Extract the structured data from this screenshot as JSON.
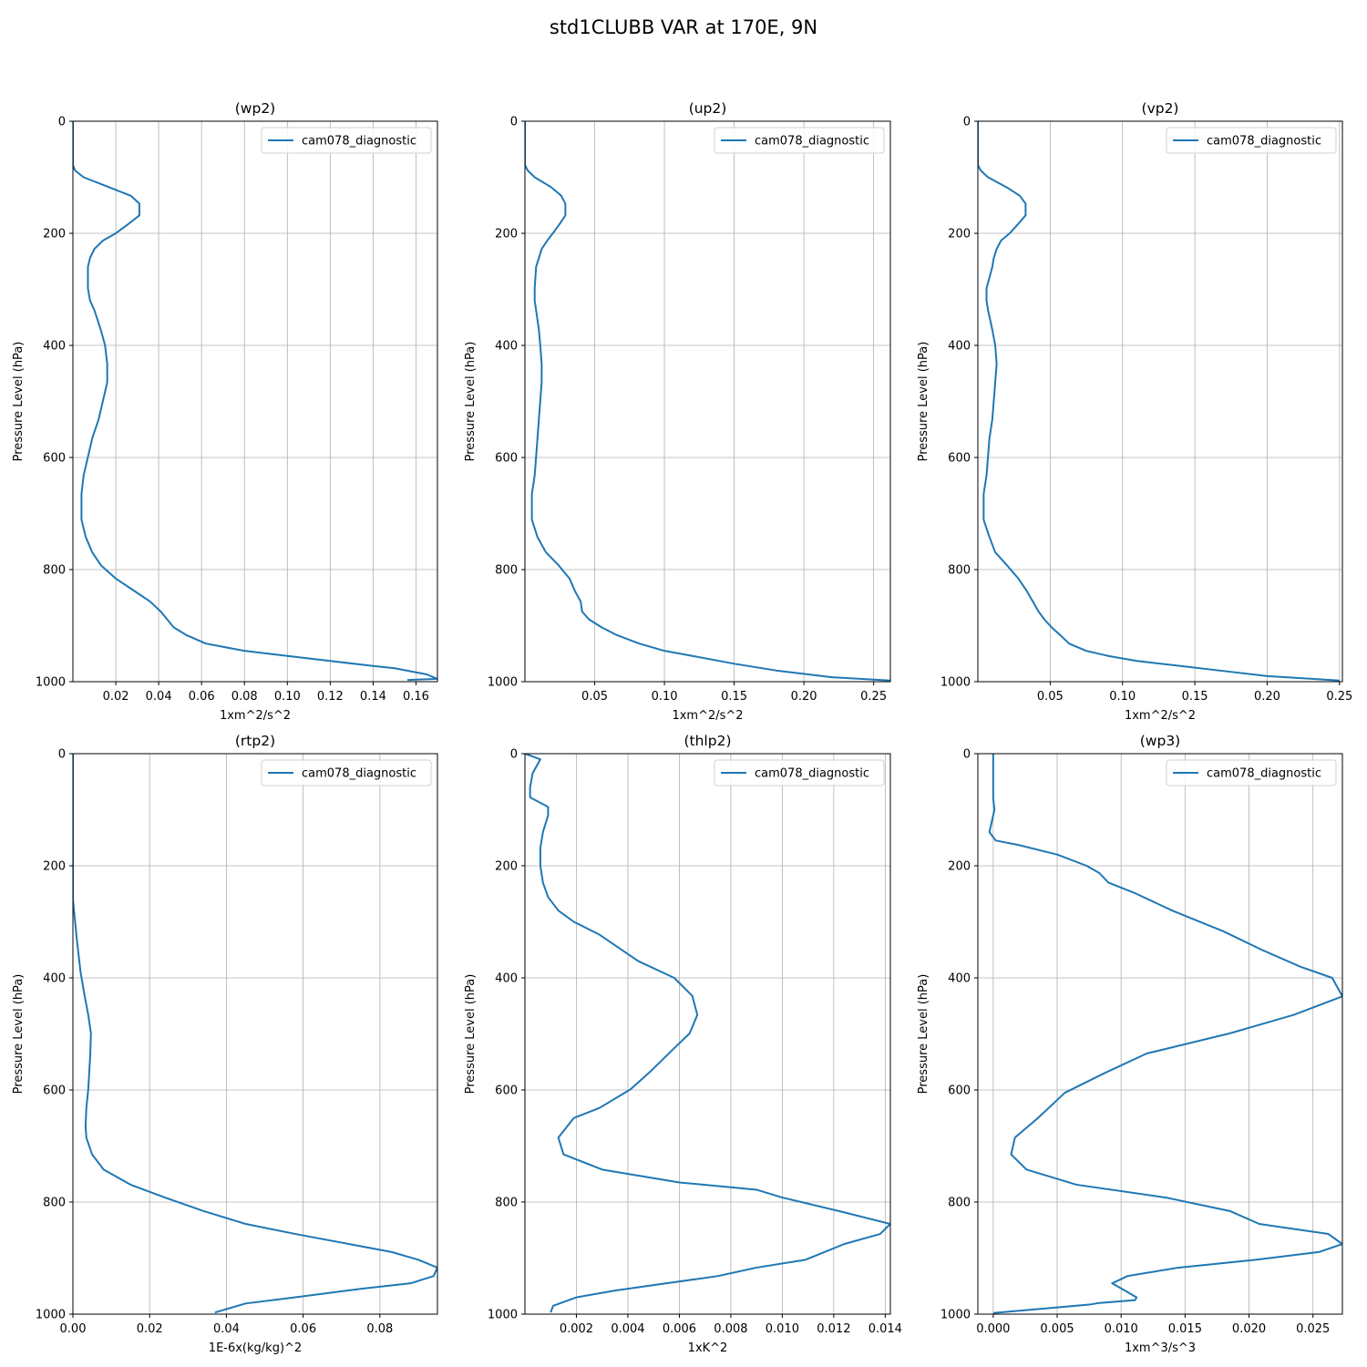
{
  "figure": {
    "title": "std1CLUBB VAR at 170E, 9N"
  },
  "chart_data": [
    {
      "type": "line",
      "title": "(wp2)",
      "xlabel": "1xm^2/s^2",
      "ylabel": "Pressure Level (hPa)",
      "xlim": [
        0.0,
        0.17
      ],
      "ylim": [
        1000,
        0
      ],
      "y_inverted": true,
      "grid": true,
      "legend": "top-right",
      "xticks": [
        0.02,
        0.04,
        0.06,
        0.08,
        0.1,
        0.12,
        0.14,
        0.16
      ],
      "xtick_labels": [
        "0.02",
        "0.04",
        "0.06",
        "0.08",
        "0.10",
        "0.12",
        "0.14",
        "0.16"
      ],
      "yticks": [
        0,
        200,
        400,
        600,
        800,
        1000
      ],
      "ytick_labels": [
        "0",
        "200",
        "400",
        "600",
        "800",
        "1000"
      ],
      "series": [
        {
          "name": "cam078_diagnostic",
          "color": "#1f77b4",
          "x": [
            0.0,
            0.0,
            0.001,
            0.005,
            0.017,
            0.027,
            0.031,
            0.031,
            0.026,
            0.02,
            0.014,
            0.01,
            0.008,
            0.007,
            0.007,
            0.008,
            0.01,
            0.013,
            0.015,
            0.016,
            0.016,
            0.014,
            0.012,
            0.009,
            0.007,
            0.005,
            0.004,
            0.004,
            0.004,
            0.006,
            0.009,
            0.013,
            0.02,
            0.029,
            0.036,
            0.041,
            0.044,
            0.047,
            0.053,
            0.062,
            0.08,
            0.1,
            0.12,
            0.14,
            0.15,
            0.165,
            0.17,
            0.156
          ],
          "y": [
            0,
            78,
            88,
            100,
            118,
            133,
            147,
            168,
            183,
            200,
            213,
            228,
            244,
            260,
            298,
            320,
            337,
            372,
            400,
            433,
            466,
            499,
            532,
            566,
            599,
            632,
            665,
            698,
            711,
            742,
            769,
            792,
            816,
            839,
            857,
            875,
            889,
            903,
            917,
            932,
            945,
            954,
            963,
            972,
            976,
            987,
            995,
            997
          ]
        }
      ]
    },
    {
      "type": "line",
      "title": "(up2)",
      "xlabel": "1xm^2/s^2",
      "ylabel": "Pressure Level (hPa)",
      "xlim": [
        0.0,
        0.262
      ],
      "ylim": [
        1000,
        0
      ],
      "y_inverted": true,
      "grid": true,
      "legend": "top-right",
      "xticks": [
        0.05,
        0.1,
        0.15,
        0.2,
        0.25
      ],
      "xtick_labels": [
        "0.05",
        "0.10",
        "0.15",
        "0.20",
        "0.25"
      ],
      "yticks": [
        0,
        200,
        400,
        600,
        800,
        1000
      ],
      "ytick_labels": [
        "0",
        "200",
        "400",
        "600",
        "800",
        "1000"
      ],
      "series": [
        {
          "name": "cam078_diagnostic",
          "color": "#1f77b4",
          "x": [
            0.0,
            0.0,
            0.002,
            0.007,
            0.019,
            0.026,
            0.029,
            0.029,
            0.025,
            0.02,
            0.016,
            0.012,
            0.01,
            0.008,
            0.007,
            0.007,
            0.008,
            0.01,
            0.011,
            0.012,
            0.012,
            0.011,
            0.01,
            0.009,
            0.008,
            0.007,
            0.005,
            0.005,
            0.005,
            0.009,
            0.015,
            0.024,
            0.032,
            0.036,
            0.04,
            0.041,
            0.046,
            0.055,
            0.066,
            0.082,
            0.1,
            0.12,
            0.15,
            0.18,
            0.22,
            0.262
          ],
          "y": [
            0,
            78,
            88,
            100,
            118,
            133,
            147,
            168,
            183,
            200,
            213,
            228,
            244,
            260,
            298,
            320,
            337,
            372,
            400,
            433,
            466,
            499,
            532,
            566,
            599,
            632,
            665,
            698,
            711,
            742,
            769,
            792,
            816,
            839,
            857,
            875,
            889,
            903,
            917,
            932,
            945,
            954,
            968,
            980,
            992,
            998
          ]
        }
      ]
    },
    {
      "type": "line",
      "title": "(vp2)",
      "xlabel": "1xm^2/s^2",
      "ylabel": "Pressure Level (hPa)",
      "xlim": [
        0.0,
        0.252
      ],
      "ylim": [
        1000,
        0
      ],
      "y_inverted": true,
      "grid": true,
      "legend": "top-right",
      "xticks": [
        0.05,
        0.1,
        0.15,
        0.2,
        0.25
      ],
      "xtick_labels": [
        "0.05",
        "0.10",
        "0.15",
        "0.20",
        "0.25"
      ],
      "yticks": [
        0,
        200,
        400,
        600,
        800,
        1000
      ],
      "ytick_labels": [
        "0",
        "200",
        "400",
        "600",
        "800",
        "1000"
      ],
      "series": [
        {
          "name": "cam078_diagnostic",
          "color": "#1f77b4",
          "x": [
            0.0,
            0.0,
            0.002,
            0.007,
            0.02,
            0.029,
            0.033,
            0.033,
            0.028,
            0.022,
            0.016,
            0.013,
            0.011,
            0.01,
            0.006,
            0.006,
            0.007,
            0.01,
            0.012,
            0.013,
            0.012,
            0.011,
            0.01,
            0.008,
            0.007,
            0.006,
            0.004,
            0.004,
            0.004,
            0.008,
            0.012,
            0.02,
            0.028,
            0.034,
            0.038,
            0.042,
            0.046,
            0.051,
            0.057,
            0.063,
            0.075,
            0.09,
            0.11,
            0.14,
            0.17,
            0.2,
            0.25
          ],
          "y": [
            0,
            78,
            88,
            100,
            118,
            133,
            147,
            168,
            183,
            200,
            213,
            228,
            244,
            260,
            298,
            320,
            337,
            372,
            400,
            433,
            466,
            499,
            532,
            566,
            599,
            632,
            665,
            698,
            711,
            742,
            769,
            792,
            816,
            839,
            857,
            875,
            889,
            903,
            917,
            932,
            945,
            954,
            963,
            972,
            981,
            990,
            998
          ]
        }
      ]
    },
    {
      "type": "line",
      "title": "(rtp2)",
      "xlabel": "1E-6x(kg/kg)^2",
      "ylabel": "Pressure Level (hPa)",
      "xlim": [
        0.0,
        0.095
      ],
      "ylim": [
        1000,
        0
      ],
      "y_inverted": true,
      "grid": true,
      "legend": "top-right",
      "xticks": [
        0.0,
        0.02,
        0.04,
        0.06,
        0.08
      ],
      "xtick_labels": [
        "0.00",
        "0.02",
        "0.04",
        "0.06",
        "0.08"
      ],
      "yticks": [
        0,
        200,
        400,
        600,
        800,
        1000
      ],
      "ytick_labels": [
        "0",
        "200",
        "400",
        "600",
        "800",
        "1000"
      ],
      "series": [
        {
          "name": "cam078_diagnostic",
          "color": "#1f77b4",
          "x": [
            0.0,
            0.0,
            0.0,
            0.001,
            0.002,
            0.003,
            0.004,
            0.0047,
            0.0045,
            0.004,
            0.0035,
            0.0033,
            0.0035,
            0.005,
            0.008,
            0.015,
            0.024,
            0.034,
            0.045,
            0.058,
            0.072,
            0.083,
            0.09,
            0.095,
            0.094,
            0.088,
            0.076,
            0.058,
            0.045,
            0.037
          ],
          "y": [
            0,
            180,
            260,
            330,
            390,
            430,
            466,
            499,
            540,
            599,
            632,
            665,
            685,
            715,
            742,
            769,
            792,
            816,
            839,
            857,
            875,
            889,
            903,
            917,
            932,
            945,
            954,
            970,
            981,
            997
          ]
        }
      ]
    },
    {
      "type": "line",
      "title": "(thlp2)",
      "xlabel": "1xK^2",
      "ylabel": "Pressure Level (hPa)",
      "xlim": [
        0.0,
        0.0142
      ],
      "ylim": [
        1000,
        0
      ],
      "y_inverted": true,
      "grid": true,
      "legend": "top-right",
      "xticks": [
        0.002,
        0.004,
        0.006,
        0.008,
        0.01,
        0.012,
        0.014
      ],
      "xtick_labels": [
        "0.002",
        "0.004",
        "0.006",
        "0.008",
        "0.010",
        "0.012",
        "0.014"
      ],
      "yticks": [
        0,
        200,
        400,
        600,
        800,
        1000
      ],
      "ytick_labels": [
        "0",
        "200",
        "400",
        "600",
        "800",
        "1000"
      ],
      "series": [
        {
          "name": "cam078_diagnostic",
          "color": "#1f77b4",
          "x": [
            0.0,
            0.0006,
            0.0003,
            0.0002,
            0.0002,
            0.0009,
            0.0009,
            0.0007,
            0.0006,
            0.0006,
            0.0007,
            0.0009,
            0.0013,
            0.0019,
            0.0029,
            0.0044,
            0.0058,
            0.0065,
            0.0067,
            0.0064,
            0.0057,
            0.0049,
            0.0041,
            0.0029,
            0.0019,
            0.0013,
            0.0015,
            0.003,
            0.006,
            0.009,
            0.01,
            0.0122,
            0.0142,
            0.0138,
            0.0124,
            0.0109,
            0.009,
            0.0075,
            0.0055,
            0.0035,
            0.002,
            0.0011,
            0.001
          ],
          "y": [
            0,
            10,
            35,
            60,
            78,
            95,
            110,
            140,
            168,
            200,
            230,
            256,
            280,
            300,
            323,
            370,
            400,
            432,
            466,
            499,
            530,
            566,
            599,
            632,
            650,
            685,
            715,
            742,
            765,
            778,
            792,
            816,
            839,
            857,
            875,
            903,
            917,
            932,
            945,
            958,
            970,
            985,
            997
          ]
        }
      ]
    },
    {
      "type": "line",
      "title": "(wp3)",
      "xlabel": "1xm^3/s^3",
      "ylabel": "Pressure Level (hPa)",
      "xlim": [
        -0.0012,
        0.0273
      ],
      "ylim": [
        1000,
        0
      ],
      "y_inverted": true,
      "grid": true,
      "legend": "top-right",
      "xticks": [
        0.0,
        0.005,
        0.01,
        0.015,
        0.02,
        0.025
      ],
      "xtick_labels": [
        "0.000",
        "0.005",
        "0.010",
        "0.015",
        "0.020",
        "0.025"
      ],
      "yticks": [
        0,
        200,
        400,
        600,
        800,
        1000
      ],
      "ytick_labels": [
        "0",
        "200",
        "400",
        "600",
        "800",
        "1000"
      ],
      "series": [
        {
          "name": "cam078_diagnostic",
          "color": "#1f77b4",
          "x": [
            0.0,
            0.0,
            0.0001,
            -0.0001,
            -0.0003,
            0.0002,
            0.002,
            0.005,
            0.0073,
            0.0083,
            0.009,
            0.011,
            0.014,
            0.018,
            0.021,
            0.024,
            0.0265,
            0.0273,
            0.0235,
            0.0185,
            0.012,
            0.0087,
            0.0056,
            0.0035,
            0.0017,
            0.0014,
            0.0026,
            0.0065,
            0.0135,
            0.0185,
            0.0208,
            0.0262,
            0.0273,
            0.0255,
            0.0205,
            0.0145,
            0.0105,
            0.0093,
            0.01,
            0.0112,
            0.0111,
            0.0083,
            0.0075,
            0.004,
            0.0
          ],
          "y": [
            0,
            80,
            100,
            120,
            140,
            155,
            163,
            180,
            200,
            213,
            230,
            248,
            280,
            317,
            350,
            380,
            400,
            433,
            466,
            499,
            535,
            570,
            605,
            650,
            685,
            715,
            742,
            769,
            792,
            816,
            839,
            857,
            875,
            889,
            903,
            917,
            932,
            945,
            954,
            970,
            975,
            980,
            983,
            990,
            998
          ]
        }
      ]
    }
  ]
}
